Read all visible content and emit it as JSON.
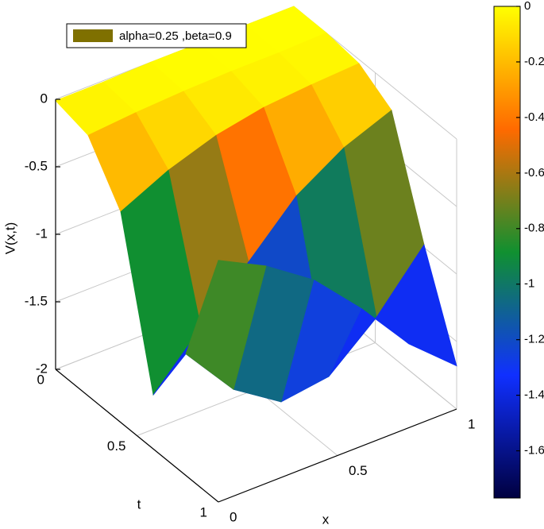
{
  "chart_data": {
    "type": "surface",
    "zlabel": "V(x,t)",
    "xlabel": "x",
    "ylabel": "t",
    "x": [
      0,
      0.2,
      0.4,
      0.6,
      0.8,
      1
    ],
    "y": [
      0,
      0.2,
      0.4,
      0.6,
      0.8,
      1
    ],
    "z": [
      [
        -0.01,
        -0.01,
        0,
        0,
        0,
        0
      ],
      [
        -0.07,
        -0.04,
        -0.02,
        -0.01,
        -0.01,
        0
      ],
      [
        -0.44,
        -0.27,
        -0.15,
        -0.08,
        -0.05,
        -0.03
      ],
      [
        -1.6,
        -1.24,
        -0.89,
        -0.54,
        -0.32,
        -0.18
      ],
      [
        -1.1,
        -1.5,
        -1.73,
        -1.68,
        -1.38,
        -0.98
      ],
      [
        -0.21,
        -0.39,
        -0.63,
        -0.98,
        -1.38,
        -1.68
      ]
    ],
    "xlim": [
      0,
      1
    ],
    "ylim": [
      0,
      1
    ],
    "zlim": [
      -2,
      0
    ],
    "xticks": [
      0,
      0.5,
      1
    ],
    "yticks": [
      0,
      0.5,
      1
    ],
    "zticks": [
      -2,
      -1.5,
      -1,
      -0.5,
      0
    ],
    "clim": [
      -1.77,
      0
    ],
    "cticks": [
      -1.6,
      -1.4,
      -1.2,
      -1,
      -0.8,
      -0.6,
      -0.4,
      -0.2,
      0
    ],
    "colormap": [
      "#000040",
      "#1030ff",
      "#109030",
      "#ff6a00",
      "#ffff00"
    ],
    "grid": true,
    "legend": {
      "label": "alpha=0.25 ,beta=0.9",
      "color": "#7f7000",
      "position": "upper left"
    }
  }
}
